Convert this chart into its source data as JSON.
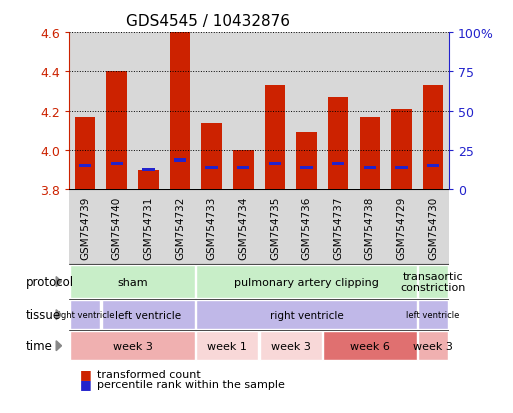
{
  "title": "GDS4545 / 10432876",
  "samples": [
    "GSM754739",
    "GSM754740",
    "GSM754731",
    "GSM754732",
    "GSM754733",
    "GSM754734",
    "GSM754735",
    "GSM754736",
    "GSM754737",
    "GSM754738",
    "GSM754729",
    "GSM754730"
  ],
  "bar_values": [
    4.17,
    4.4,
    3.9,
    4.6,
    4.14,
    4.0,
    4.33,
    4.09,
    4.27,
    4.17,
    4.21,
    4.33
  ],
  "blue_marker_values": [
    3.92,
    3.93,
    3.9,
    3.95,
    3.91,
    3.91,
    3.93,
    3.91,
    3.93,
    3.91,
    3.91,
    3.92
  ],
  "ylim": [
    3.8,
    4.6
  ],
  "y_ticks_left": [
    3.8,
    4.0,
    4.2,
    4.4,
    4.6
  ],
  "y_ticks_right": [
    0,
    25,
    50,
    75,
    100
  ],
  "y_ticks_right_labels": [
    "0",
    "25",
    "50",
    "75",
    "100%"
  ],
  "bar_color": "#cc2200",
  "blue_color": "#2222cc",
  "bar_bottom": 3.8,
  "protocol_groups": [
    {
      "label": "sham",
      "start": 0,
      "end": 4,
      "color": "#c8eec8"
    },
    {
      "label": "pulmonary artery clipping",
      "start": 4,
      "end": 11,
      "color": "#c8eec8"
    },
    {
      "label": "transaortic\nconstriction",
      "start": 11,
      "end": 12,
      "color": "#c8eec8"
    }
  ],
  "tissue_groups": [
    {
      "label": "right ventricle",
      "start": 0,
      "end": 1,
      "color": "#c0b8e8"
    },
    {
      "label": "left ventricle",
      "start": 1,
      "end": 4,
      "color": "#c0b8e8"
    },
    {
      "label": "right ventricle",
      "start": 4,
      "end": 11,
      "color": "#c0b8e8"
    },
    {
      "label": "left ventricle",
      "start": 11,
      "end": 12,
      "color": "#c0b8e8"
    }
  ],
  "time_groups": [
    {
      "label": "week 3",
      "start": 0,
      "end": 4,
      "color": "#f0b0b0"
    },
    {
      "label": "week 1",
      "start": 4,
      "end": 6,
      "color": "#f8d8d8"
    },
    {
      "label": "week 3",
      "start": 6,
      "end": 8,
      "color": "#f8d8d8"
    },
    {
      "label": "week 6",
      "start": 8,
      "end": 11,
      "color": "#e07070"
    },
    {
      "label": "week 3",
      "start": 11,
      "end": 12,
      "color": "#f0b0b0"
    }
  ],
  "legend_items": [
    "transformed count",
    "percentile rank within the sample"
  ],
  "left_ylabel_color": "#cc2200",
  "right_ylabel_color": "#2222cc",
  "sample_bg_color": "#d8d8d8",
  "row_label_color": "#888888",
  "arrow_color": "#888888"
}
